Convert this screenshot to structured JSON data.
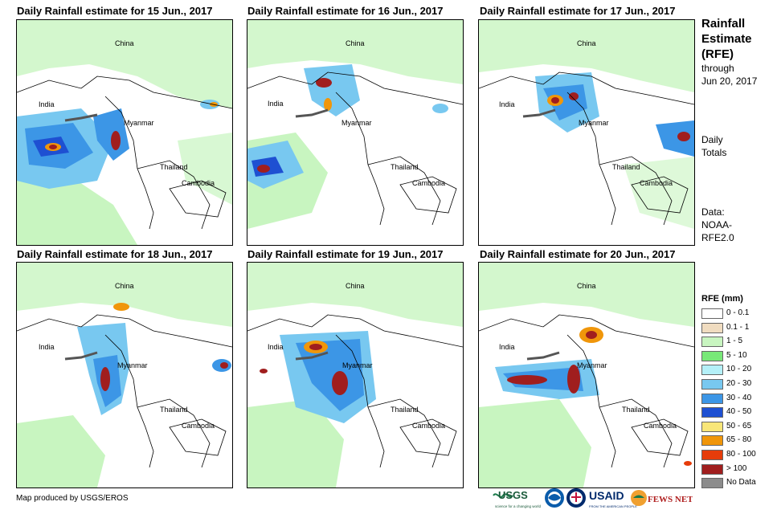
{
  "panels": [
    {
      "title": "Daily Rainfall estimate for 15 Jun., 2017"
    },
    {
      "title": "Daily Rainfall estimate for 16 Jun., 2017"
    },
    {
      "title": "Daily Rainfall estimate for 17 Jun., 2017"
    },
    {
      "title": "Daily Rainfall estimate for 18 Jun., 2017"
    },
    {
      "title": "Daily Rainfall estimate for 19 Jun., 2017"
    },
    {
      "title": "Daily Rainfall estimate for 20 Jun., 2017"
    }
  ],
  "country_labels": {
    "china": "China",
    "india": "India",
    "myanmar": "Myanmar",
    "thailand": "Thailand",
    "cambodia": "Cambodia"
  },
  "sidebar": {
    "title_line1": "Rainfall",
    "title_line2": "Estimate",
    "title_line3": "(RFE)",
    "through_label": "through",
    "through_date": "Jun 20, 2017",
    "daily_line1": "Daily",
    "daily_line2": "Totals",
    "data_line1": "Data:",
    "data_line2": "NOAA-",
    "data_line3": "RFE2.0"
  },
  "legend": {
    "title": "RFE (mm)",
    "items": [
      {
        "label": "0 - 0.1",
        "color": "#ffffff"
      },
      {
        "label": "0.1 - 1",
        "color": "#f0dcc0"
      },
      {
        "label": "1 - 5",
        "color": "#c8f5c0"
      },
      {
        "label": "5 - 10",
        "color": "#78e878"
      },
      {
        "label": "10 - 20",
        "color": "#b4f0f8"
      },
      {
        "label": "20 - 30",
        "color": "#78c8f0"
      },
      {
        "label": "30 - 40",
        "color": "#3c96e6"
      },
      {
        "label": "40 - 50",
        "color": "#1e50d2"
      },
      {
        "label": "50 - 65",
        "color": "#f8e678"
      },
      {
        "label": "65 - 80",
        "color": "#f0960a"
      },
      {
        "label": "80 - 100",
        "color": "#e63c0a"
      },
      {
        "label": "> 100",
        "color": "#a01e1e"
      },
      {
        "label": "No Data",
        "color": "#8c8c8c"
      }
    ]
  },
  "footer": {
    "credit": "Map produced by USGS/EROS"
  },
  "logos": {
    "usgs": "USGS",
    "usgs_tagline": "science for a changing world",
    "usaid": "USAID",
    "usaid_tagline": "FROM THE AMERICAN PEOPLE",
    "fewsnet": "FEWS NET"
  }
}
